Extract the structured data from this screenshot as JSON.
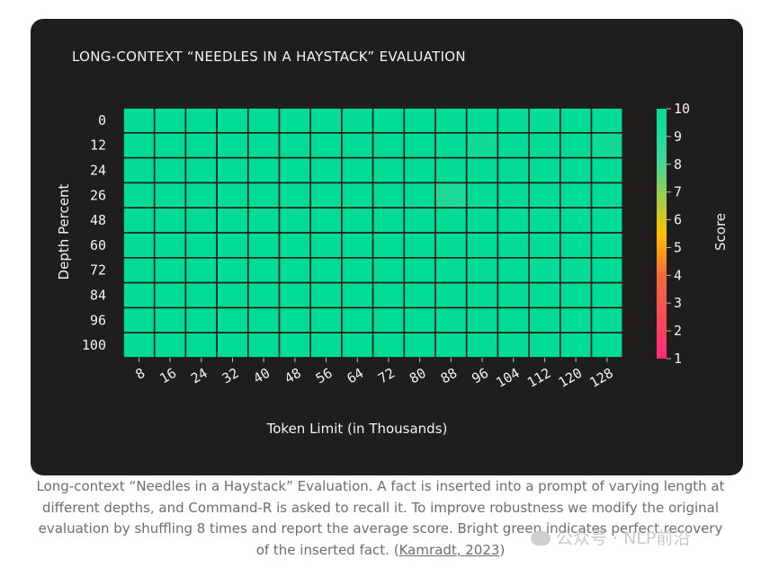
{
  "chart_data": {
    "type": "heatmap",
    "title": "LONG-CONTEXT “NEEDLES IN A HAYSTACK” EVALUATION",
    "xlabel": "Token Limit (in Thousands)",
    "ylabel": "Depth Percent",
    "x": [
      "8",
      "16",
      "24",
      "32",
      "40",
      "48",
      "56",
      "64",
      "72",
      "80",
      "88",
      "96",
      "104",
      "112",
      "120",
      "128"
    ],
    "y": [
      "0",
      "12",
      "24",
      "26",
      "48",
      "60",
      "72",
      "84",
      "96",
      "100"
    ],
    "colorbar": {
      "label": "Score",
      "min": 1,
      "max": 10,
      "ticks": [
        "10",
        "9",
        "8",
        "7",
        "6",
        "5",
        "4",
        "3",
        "2",
        "1"
      ]
    },
    "values": [
      [
        10,
        10,
        10,
        10,
        10,
        10,
        9.9,
        9.9,
        10,
        10,
        10,
        10,
        9.9,
        9.8,
        10,
        9.9
      ],
      [
        10,
        10,
        10,
        10,
        10,
        10,
        10,
        10,
        10,
        10,
        10,
        9.5,
        10,
        10,
        10,
        9.5
      ],
      [
        10,
        10,
        10,
        10,
        10,
        10,
        10,
        10,
        10,
        10,
        10,
        10,
        10,
        10,
        10,
        10
      ],
      [
        10,
        10,
        10,
        10,
        10,
        10,
        10,
        10,
        10,
        10,
        9.0,
        10,
        10,
        10,
        10,
        10
      ],
      [
        10,
        10,
        10,
        10,
        10,
        10,
        10,
        10,
        10,
        10,
        10,
        10,
        9.9,
        10,
        10,
        10
      ],
      [
        10,
        10,
        10,
        10,
        10,
        10,
        10,
        10,
        10,
        10,
        10,
        10,
        9.9,
        10,
        10,
        10
      ],
      [
        10,
        10,
        10,
        10,
        10,
        10,
        10,
        10,
        10,
        10,
        10,
        10,
        10,
        9.8,
        9.8,
        10
      ],
      [
        10,
        10,
        10,
        10,
        10,
        10,
        10,
        10,
        10,
        10,
        10,
        10,
        10,
        10,
        10,
        10
      ],
      [
        10,
        10,
        10,
        10,
        10,
        10,
        10,
        10,
        10,
        10,
        10,
        10,
        10,
        10,
        10,
        9.9
      ],
      [
        10,
        10,
        10,
        10,
        10,
        10,
        10,
        10,
        10,
        10,
        10,
        10,
        10,
        10,
        10,
        10
      ]
    ],
    "colors": [
      "#ff2a73",
      "#f26a3c",
      "#ffc200",
      "#3bd79b",
      "#00dc96"
    ]
  },
  "caption": {
    "text": "Long-context “Needles in a Haystack” Evaluation. A fact is inserted into a prompt of varying length at different depths, and Command-R is asked to recall it. To improve robustness we modify the original evaluation by shuffling 8 times and report the average score. Bright green indicates perfect recovery of the inserted fact. (",
    "link": "Kamradt, 2023",
    "end": ")"
  },
  "watermark": "公众号 · NLP前沿"
}
